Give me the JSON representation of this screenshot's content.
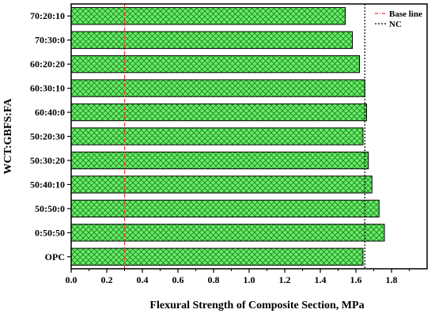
{
  "chart_data": {
    "type": "bar",
    "orientation": "horizontal",
    "categories": [
      "70:20:10",
      "70:30:0",
      "60:20:20",
      "60:30:10",
      "60:40:0",
      "50:20:30",
      "50:30:20",
      "50:40:10",
      "50:50:0",
      "0:50:50",
      "OPC"
    ],
    "values": [
      1.54,
      1.58,
      1.62,
      1.65,
      1.66,
      1.64,
      1.67,
      1.69,
      1.73,
      1.76,
      1.64
    ],
    "xlabel": "Flexural Strength of Composite Section, MPa",
    "ylabel": "WCT:GBFS:FA",
    "xlim": [
      0.0,
      2.0
    ],
    "xticks": [
      "0.0",
      "0.2",
      "0.4",
      "0.6",
      "0.8",
      "1.0",
      "1.2",
      "1.4",
      "1.6",
      "1.8"
    ],
    "xtick_values": [
      0.0,
      0.2,
      0.4,
      0.6,
      0.8,
      1.0,
      1.2,
      1.4,
      1.6,
      1.8
    ],
    "grid": false,
    "bar_fill_color": "#66ee66",
    "bar_hatch": "crosshatch",
    "reference_lines": [
      {
        "name": "Base line",
        "value": 0.3,
        "color": "#ee3333",
        "style": "dash-dot"
      },
      {
        "name": "NC",
        "value": 1.65,
        "color": "#000000",
        "style": "dotted"
      }
    ],
    "legend_position": "top-right"
  }
}
